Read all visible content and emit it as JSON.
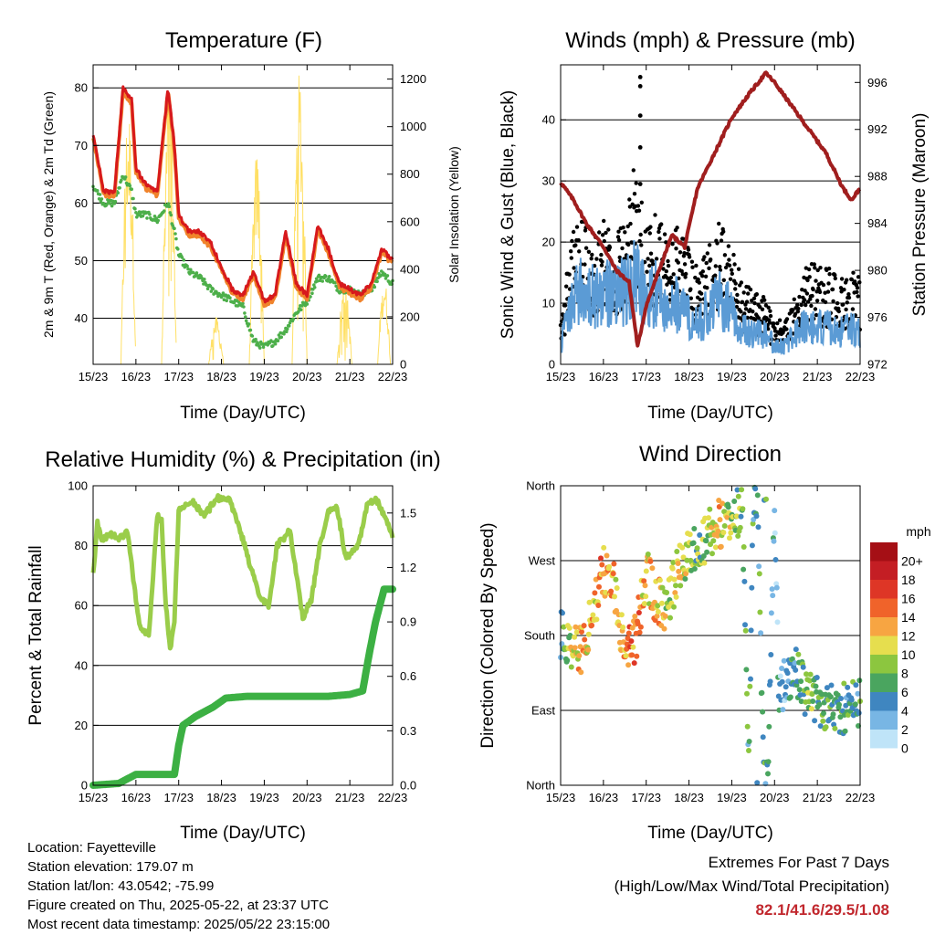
{
  "colors": {
    "temp_2m": "#d7191c",
    "temp_9m": "#f0832b",
    "dewpoint": "#4daf4a",
    "solar": "#ffe066",
    "wind": "#5b9bd5",
    "gust": "#000000",
    "pressure": "#a01e1e",
    "rh": "#9acd4a",
    "rain": "#3cb043"
  },
  "time_ticks": [
    "15/23",
    "16/23",
    "17/23",
    "18/23",
    "19/23",
    "20/23",
    "21/23",
    "22/23"
  ],
  "chart_data": [
    {
      "id": "temperature",
      "type": "line",
      "title": "Temperature (F)",
      "xlabel": "Time (Day/UTC)",
      "ylabel": "2m & 9m T (Red, Orange) & 2m Td (Green)",
      "ylabel_right": "Solar Insolation (Yellow)",
      "ylim": [
        32,
        84
      ],
      "yticks": [
        40,
        50,
        60,
        70,
        80
      ],
      "ylim_right": [
        0,
        1260
      ],
      "yticks_right": [
        0,
        200,
        400,
        600,
        800,
        1000,
        1200
      ],
      "x_days": [
        0,
        0.25,
        0.5,
        0.7,
        0.9,
        1.0,
        1.25,
        1.5,
        1.75,
        1.9,
        2.0,
        2.25,
        2.5,
        2.75,
        3.0,
        3.25,
        3.5,
        3.75,
        4.0,
        4.25,
        4.5,
        4.75,
        5.0,
        5.25,
        5.5,
        5.75,
        6.0,
        6.25,
        6.5,
        6.75,
        7.0
      ],
      "series": [
        {
          "key": "t2m",
          "values": [
            72,
            62,
            62,
            80,
            78,
            66,
            63,
            62,
            80,
            70,
            58,
            55,
            55,
            53,
            49,
            45,
            44,
            48,
            43,
            44,
            55,
            46,
            44,
            56,
            52,
            46,
            45,
            44,
            46,
            52,
            50
          ]
        },
        {
          "key": "td",
          "values": [
            63,
            60,
            60,
            65,
            62,
            58,
            58,
            57,
            60,
            55,
            51,
            48,
            47,
            45,
            44,
            43,
            42,
            36,
            35,
            36,
            38,
            41,
            43,
            47,
            47,
            45,
            45,
            44,
            45,
            48,
            46
          ]
        }
      ],
      "solar": {
        "days": [
          {
            "start": 0.65,
            "peak": 1100,
            "width": 0.35
          },
          {
            "start": 1.6,
            "peak": 1180,
            "width": 0.35
          },
          {
            "start": 2.7,
            "peak": 200,
            "width": 0.35
          },
          {
            "start": 3.65,
            "peak": 900,
            "width": 0.35
          },
          {
            "start": 4.65,
            "peak": 1250,
            "width": 0.35
          },
          {
            "start": 5.7,
            "peak": 350,
            "width": 0.35
          },
          {
            "start": 6.65,
            "peak": 380,
            "width": 0.3
          }
        ]
      }
    },
    {
      "id": "winds",
      "type": "scatter",
      "title": "Winds (mph) & Pressure (mb)",
      "xlabel": "Time (Day/UTC)",
      "ylabel": "Sonic Wind & Gust (Blue, Black)",
      "ylabel_right": "Station Pressure (Maroon)",
      "ylim": [
        0,
        49
      ],
      "yticks": [
        0,
        10,
        20,
        30,
        40
      ],
      "ylim_right": [
        972,
        997.5
      ],
      "yticks_right": [
        972,
        976,
        980,
        984,
        988,
        992,
        996
      ],
      "x_days": [
        0,
        0.25,
        0.5,
        0.75,
        1.0,
        1.25,
        1.5,
        1.75,
        2.0,
        2.25,
        2.5,
        2.75,
        3.0,
        3.25,
        3.5,
        3.75,
        4.0,
        4.25,
        4.5,
        4.75,
        5.0,
        5.25,
        5.5,
        5.75,
        6.0,
        6.25,
        6.5,
        6.75,
        7.0
      ],
      "wind_mean": [
        3,
        10,
        12,
        11,
        13,
        11,
        12,
        14,
        10,
        12,
        9,
        10,
        8,
        7,
        9,
        11,
        8,
        6,
        5,
        5,
        3,
        3,
        5,
        7,
        6,
        6,
        5,
        6,
        5
      ],
      "gust_mean": [
        5,
        15,
        17,
        14,
        18,
        14,
        17,
        24,
        15,
        18,
        14,
        16,
        13,
        11,
        14,
        17,
        13,
        10,
        8,
        8,
        5,
        5,
        8,
        12,
        11,
        11,
        10,
        11,
        10
      ],
      "pressure": {
        "x_days": [
          0,
          0.3,
          0.6,
          1.0,
          1.3,
          1.6,
          1.8,
          2.0,
          2.3,
          2.6,
          2.9,
          3.2,
          3.6,
          4.0,
          4.4,
          4.8,
          5.0,
          5.4,
          5.8,
          6.2,
          6.6,
          6.8,
          7.0
        ],
        "values": [
          987.5,
          986,
          984,
          982,
          980,
          979,
          973.5,
          977,
          980,
          983,
          982,
          987,
          990,
          993,
          995,
          996.8,
          996,
          994,
          992,
          990,
          987,
          986,
          987
        ]
      }
    },
    {
      "id": "humidity",
      "type": "line",
      "title": "Relative Humidity (%) & Precipitation (in)",
      "xlabel": "Time (Day/UTC)",
      "ylabel": "Percent & Total Rainfall",
      "ylim": [
        0,
        100
      ],
      "yticks": [
        0,
        20,
        40,
        60,
        80,
        100
      ],
      "ylim_right": [
        0,
        1.65
      ],
      "yticks_right": [
        0.0,
        0.3,
        0.6,
        0.9,
        1.2,
        1.5
      ],
      "yticks_right_labels": [
        "0.0",
        "0.3",
        "0.6",
        "0.9",
        "1.2",
        "1.5"
      ],
      "rh": {
        "x_days": [
          0,
          0.1,
          0.2,
          0.4,
          0.6,
          0.8,
          1.0,
          1.1,
          1.3,
          1.5,
          1.6,
          1.7,
          1.8,
          1.9,
          2.0,
          2.3,
          2.6,
          2.9,
          3.2,
          3.5,
          3.7,
          3.9,
          4.1,
          4.3,
          4.6,
          4.9,
          5.1,
          5.3,
          5.5,
          5.7,
          5.9,
          6.2,
          6.4,
          6.6,
          6.8,
          7.0
        ],
        "values": [
          70,
          88,
          82,
          84,
          82,
          85,
          62,
          53,
          50,
          90,
          88,
          60,
          45,
          55,
          92,
          95,
          90,
          96,
          95,
          82,
          72,
          62,
          60,
          80,
          85,
          56,
          62,
          80,
          92,
          93,
          76,
          80,
          93,
          96,
          90,
          83
        ]
      },
      "rain": {
        "x_days": [
          0,
          0.6,
          1.0,
          1.5,
          1.9,
          2.0,
          2.1,
          2.4,
          2.8,
          3.1,
          3.6,
          4.5,
          5.5,
          6.0,
          6.3,
          6.45,
          6.6,
          6.8,
          7.0
        ],
        "values": [
          0.0,
          0.01,
          0.06,
          0.06,
          0.06,
          0.22,
          0.33,
          0.38,
          0.43,
          0.48,
          0.49,
          0.49,
          0.49,
          0.5,
          0.52,
          0.72,
          0.9,
          1.08,
          1.08
        ]
      }
    },
    {
      "id": "direction",
      "type": "scatter",
      "title": "Wind Direction",
      "xlabel": "Time (Day/UTC)",
      "ylabel": "Direction (Colored By Speed)",
      "yticks_labels": [
        "North",
        "East",
        "South",
        "West",
        "North"
      ],
      "yticks_deg": [
        0,
        90,
        180,
        270,
        360
      ],
      "ylim": [
        0,
        360
      ],
      "trend": {
        "x_days": [
          0,
          0.25,
          0.5,
          0.75,
          1.0,
          1.25,
          1.5,
          1.75,
          2.0,
          2.25,
          2.5,
          2.75,
          3.0,
          3.25,
          3.5,
          3.75,
          4.0,
          4.25,
          4.4,
          4.5,
          4.6,
          4.75,
          4.85,
          5.0,
          5.1,
          5.3,
          5.5,
          5.75,
          6.0,
          6.25,
          6.5,
          6.75,
          7.0
        ],
        "values": [
          180,
          165,
          160,
          210,
          260,
          240,
          160,
          175,
          255,
          220,
          215,
          265,
          280,
          285,
          305,
          315,
          320,
          330,
          25,
          350,
          340,
          5,
          15,
          340,
          110,
          130,
          135,
          110,
          100,
          95,
          90,
          95,
          100
        ]
      },
      "legend": {
        "title": "mph",
        "labels": [
          "20+",
          "18",
          "16",
          "14",
          "12",
          "10",
          "8",
          "6",
          "4",
          "2",
          "0"
        ],
        "colors": [
          "#a50f15",
          "#c41e24",
          "#de3626",
          "#f0632a",
          "#f7a542",
          "#e6de4e",
          "#8cc63f",
          "#4aa55f",
          "#3f86c0",
          "#78b6e4",
          "#bfe4f8"
        ]
      }
    }
  ],
  "info": {
    "location": "Location: Fayetteville",
    "elevation": "Station elevation: 179.07 m",
    "latlon": "Station lat/lon: 43.0542; -75.99",
    "created": "Figure created on Thu, 2025-05-22, at 23:37 UTC",
    "recent": "Most recent data timestamp: 2025/05/22 23:15:00"
  },
  "extremes": {
    "title": "Extremes For Past 7 Days",
    "subtitle": "(High/Low/Max Wind/Total Precipitation)",
    "values": "82.1/41.6/29.5/1.08"
  }
}
